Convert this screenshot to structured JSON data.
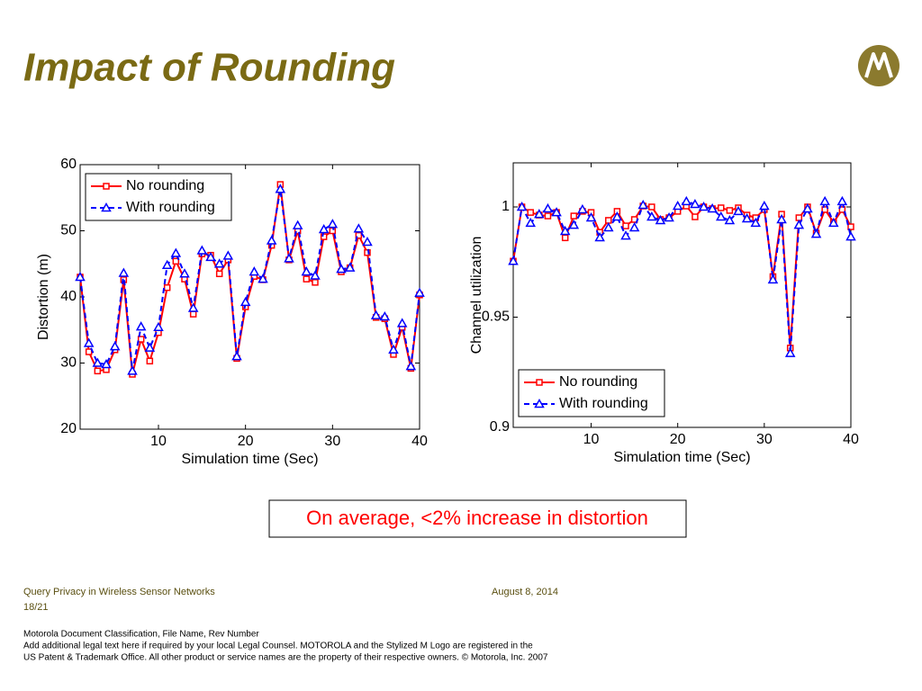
{
  "slide": {
    "title": "Impact of Rounding",
    "callout": "On average, <2% increase in distortion",
    "footer": {
      "presentation": "Query Privacy in Wireless Sensor Networks",
      "date": "August 8, 2014",
      "page": "18/21",
      "classification": "Motorola Document Classification, File Name, Rev Number",
      "legal_1": "Add additional legal text here if required by your local Legal Counsel. MOTOROLA and the Stylized M Logo are registered in the",
      "legal_2": "US Patent & Trademark Office. All other product or service names are the property of their respective owners. © Motorola, Inc. 2007"
    }
  },
  "chart_data": [
    {
      "type": "line",
      "xlabel": "Simulation time (Sec)",
      "ylabel": "Distortion (m)",
      "x": [
        1,
        2,
        3,
        4,
        5,
        6,
        7,
        8,
        9,
        10,
        11,
        12,
        13,
        14,
        15,
        16,
        17,
        18,
        19,
        20,
        21,
        22,
        23,
        24,
        25,
        26,
        27,
        28,
        29,
        30,
        31,
        32,
        33,
        34,
        35,
        36,
        37,
        38,
        39,
        40
      ],
      "xlim": [
        1,
        40
      ],
      "xticks": [
        10,
        20,
        30,
        40
      ],
      "ylim": [
        20,
        60
      ],
      "yticks": [
        20,
        30,
        40,
        50,
        60
      ],
      "legend": "upper left",
      "series": [
        {
          "name": "No rounding",
          "color": "#ff0000",
          "marker": "square",
          "line_style": "solid",
          "values": [
            43,
            31.7,
            28.8,
            29,
            32,
            42.6,
            28.3,
            33.6,
            30.3,
            34.6,
            41.4,
            45.4,
            42.7,
            37.4,
            46.5,
            46.3,
            43.5,
            45.6,
            30.7,
            38.5,
            43.1,
            42.6,
            47.8,
            57,
            45.6,
            50,
            42.7,
            42.2,
            49.1,
            50,
            43.8,
            44.4,
            49.3,
            46.7,
            36.9,
            36.7,
            31.3,
            35.4,
            29.2,
            40.3
          ]
        },
        {
          "name": "With rounding",
          "color": "#0000ff",
          "marker": "triangle",
          "line_style": "dashed",
          "values": [
            43,
            33,
            30,
            29.8,
            32.5,
            43.6,
            28.8,
            35.5,
            32.3,
            35.4,
            44.8,
            46.6,
            43.5,
            38.3,
            47,
            46,
            45,
            46.2,
            31,
            39.2,
            43.8,
            42.7,
            48.5,
            56.3,
            45.8,
            50.8,
            43.8,
            43.2,
            50.2,
            51,
            44.2,
            44.4,
            50.3,
            48.3,
            37.2,
            37,
            32,
            36,
            29.5,
            40.6
          ]
        }
      ]
    },
    {
      "type": "line",
      "xlabel": "Simulation time (Sec)",
      "ylabel": "Channel utilization",
      "x": [
        1,
        2,
        3,
        4,
        5,
        6,
        7,
        8,
        9,
        10,
        11,
        12,
        13,
        14,
        15,
        16,
        17,
        18,
        19,
        20,
        21,
        22,
        23,
        24,
        25,
        26,
        27,
        28,
        29,
        30,
        31,
        32,
        33,
        34,
        35,
        36,
        37,
        38,
        39,
        40
      ],
      "xlim": [
        1,
        40
      ],
      "xticks": [
        10,
        20,
        30,
        40
      ],
      "ylim": [
        0.9,
        1.02
      ],
      "yticks": [
        0.9,
        0.95,
        1
      ],
      "legend": "lower left",
      "series": [
        {
          "name": "No rounding",
          "color": "#ff0000",
          "marker": "square",
          "line_style": "solid",
          "values": [
            0.9754,
            1.0,
            0.9975,
            0.9963,
            0.9959,
            0.9975,
            0.986,
            0.9959,
            0.998,
            0.9975,
            0.9885,
            0.9939,
            0.998,
            0.9914,
            0.9943,
            1.0004,
            1.0,
            0.9943,
            0.9951,
            0.998,
            1.0004,
            0.9955,
            1.0,
            0.9992,
            0.9996,
            0.9984,
            0.9996,
            0.9963,
            0.9951,
            0.9988,
            0.9684,
            0.9967,
            0.936,
            0.9951,
            1.0,
            0.9881,
            0.9988,
            0.993,
            0.9988,
            0.991
          ]
        },
        {
          "name": "With rounding",
          "color": "#0000ff",
          "marker": "triangle",
          "line_style": "dashed",
          "values": [
            0.9754,
            1.0,
            0.9927,
            0.9967,
            0.9992,
            0.9975,
            0.989,
            0.9918,
            0.9988,
            0.9951,
            0.9861,
            0.9906,
            0.9955,
            0.9869,
            0.9906,
            1.0008,
            0.9955,
            0.9939,
            0.9951,
            1.0004,
            1.0025,
            1.0012,
            1.0,
            0.9992,
            0.9955,
            0.9939,
            0.998,
            0.9947,
            0.9927,
            1.0004,
            0.967,
            0.9943,
            0.9336,
            0.9918,
            0.9992,
            0.9877,
            1.0025,
            0.9927,
            1.0025,
            0.9865
          ]
        }
      ]
    }
  ]
}
